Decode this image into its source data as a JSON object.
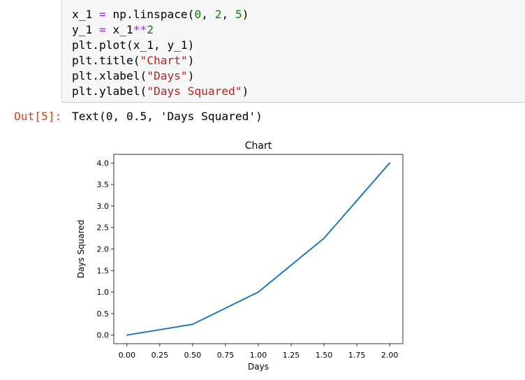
{
  "code_cell": {
    "lines": [
      [
        {
          "t": "x_1 ",
          "c": ""
        },
        {
          "t": "=",
          "c": "op"
        },
        {
          "t": " np.linspace(",
          "c": ""
        },
        {
          "t": "0",
          "c": "num"
        },
        {
          "t": ", ",
          "c": ""
        },
        {
          "t": "2",
          "c": "num"
        },
        {
          "t": ", ",
          "c": ""
        },
        {
          "t": "5",
          "c": "num"
        },
        {
          "t": ")",
          "c": ""
        }
      ],
      [
        {
          "t": "y_1 ",
          "c": ""
        },
        {
          "t": "=",
          "c": "op"
        },
        {
          "t": " x_1",
          "c": ""
        },
        {
          "t": "**",
          "c": "op"
        },
        {
          "t": "2",
          "c": "num"
        }
      ],
      [
        {
          "t": "plt.plot(x_1, y_1)",
          "c": ""
        }
      ],
      [
        {
          "t": "plt.title(",
          "c": ""
        },
        {
          "t": "\"Chart\"",
          "c": "str"
        },
        {
          "t": ")",
          "c": ""
        }
      ],
      [
        {
          "t": "plt.xlabel(",
          "c": ""
        },
        {
          "t": "\"Days\"",
          "c": "str"
        },
        {
          "t": ")",
          "c": ""
        }
      ],
      [
        {
          "t": "plt.ylabel(",
          "c": ""
        },
        {
          "t": "\"Days Squared\"",
          "c": "str"
        },
        {
          "t": ")",
          "c": ""
        }
      ]
    ]
  },
  "output": {
    "prompt": "Out[5]:",
    "text": "Text(0, 0.5, 'Days Squared')"
  },
  "chart_data": {
    "type": "line",
    "title": "Chart",
    "xlabel": "Days",
    "ylabel": "Days Squared",
    "x": [
      0.0,
      0.5,
      1.0,
      1.5,
      2.0
    ],
    "series": [
      {
        "values": [
          0.0,
          0.25,
          1.0,
          2.25,
          4.0
        ],
        "color": "#1f77b4"
      }
    ],
    "xlim": [
      -0.1,
      2.1
    ],
    "ylim": [
      -0.2,
      4.2
    ],
    "xticks": [
      0.0,
      0.25,
      0.5,
      0.75,
      1.0,
      1.25,
      1.5,
      1.75,
      2.0
    ],
    "xtick_labels": [
      "0.00",
      "0.25",
      "0.50",
      "0.75",
      "1.00",
      "1.25",
      "1.50",
      "1.75",
      "2.00"
    ],
    "yticks": [
      0.0,
      0.5,
      1.0,
      1.5,
      2.0,
      2.5,
      3.0,
      3.5,
      4.0
    ],
    "ytick_labels": [
      "0.0",
      "0.5",
      "1.0",
      "1.5",
      "2.0",
      "2.5",
      "3.0",
      "3.5",
      "4.0"
    ],
    "grid": false
  }
}
